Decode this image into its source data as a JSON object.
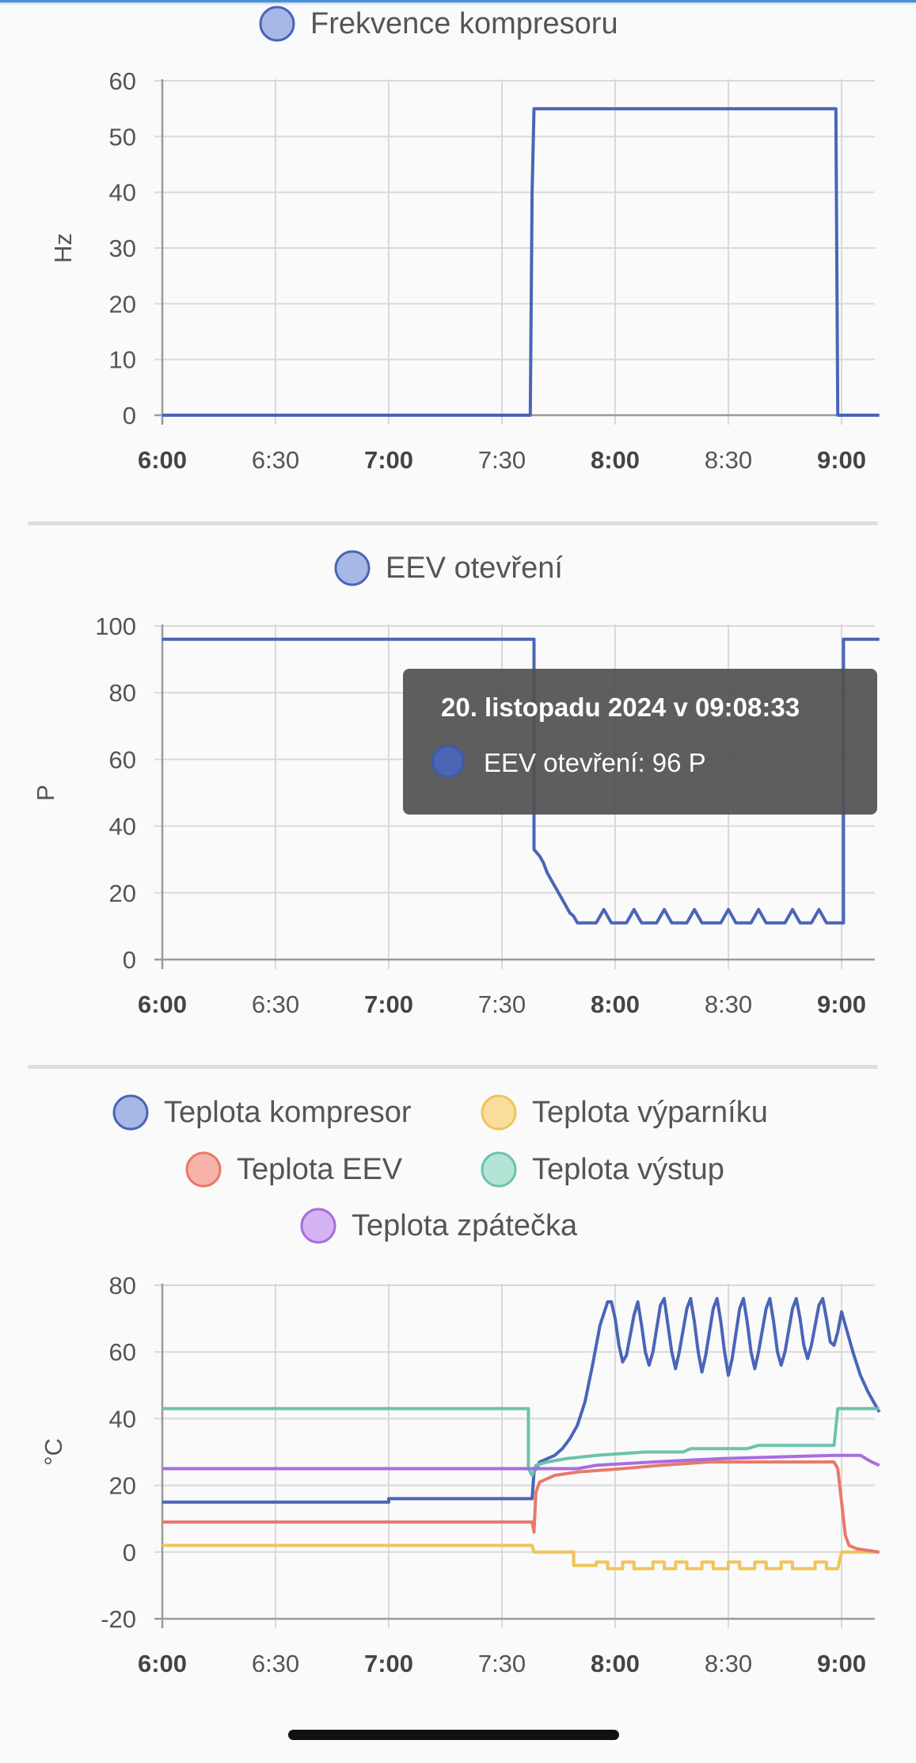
{
  "tooltip": {
    "title": "20. listopadu 2024 v 09:08:33",
    "label": "EEV otevření: 96 P",
    "color": "#4c65b4"
  },
  "x_ticks": [
    {
      "label": "6:00",
      "bold": true
    },
    {
      "label": "6:30",
      "bold": false
    },
    {
      "label": "7:00",
      "bold": true
    },
    {
      "label": "7:30",
      "bold": false
    },
    {
      "label": "8:00",
      "bold": true
    },
    {
      "label": "8:30",
      "bold": false
    },
    {
      "label": "9:00",
      "bold": true
    }
  ],
  "chart_data": [
    {
      "type": "line",
      "ylabel": "Hz",
      "ylim": [
        0,
        60
      ],
      "yticks": [
        0,
        10,
        20,
        30,
        40,
        50,
        60
      ],
      "xlim": [
        "6:00",
        "9:10"
      ],
      "grid": true,
      "legend_position": "top",
      "series": [
        {
          "name": "Frekvence kompresoru",
          "color": "#4a65b8",
          "fill": "#a7b8e6",
          "points": [
            [
              "6:00",
              0
            ],
            [
              "7:37.5",
              0
            ],
            [
              "7:38",
              40
            ],
            [
              "7:38.5",
              55
            ],
            [
              "8:58.5",
              55
            ],
            [
              "8:59",
              0
            ],
            [
              "9:10",
              0
            ]
          ]
        }
      ]
    },
    {
      "type": "line",
      "ylabel": "P",
      "ylim": [
        0,
        100
      ],
      "yticks": [
        0,
        20,
        40,
        60,
        80,
        100
      ],
      "xlim": [
        "6:00",
        "9:10"
      ],
      "grid": true,
      "legend_position": "top",
      "series": [
        {
          "name": "EEV otevření",
          "color": "#4a65b8",
          "fill": "#a7b8e6",
          "points": [
            [
              "6:00",
              96
            ],
            [
              "7:38.5",
              96
            ],
            [
              "7:38.5",
              33
            ],
            [
              "7:40",
              31
            ],
            [
              "7:41",
              29
            ],
            [
              "7:42",
              26
            ],
            [
              "7:43",
              24
            ],
            [
              "7:44",
              22
            ],
            [
              "7:45",
              20
            ],
            [
              "7:46",
              18
            ],
            [
              "7:47",
              16
            ],
            [
              "7:48",
              14
            ],
            [
              "7:49",
              13
            ],
            [
              "7:50",
              11
            ],
            [
              "7:55",
              11
            ],
            [
              "7:56",
              13
            ],
            [
              "7:57",
              15
            ],
            [
              "7:58",
              13
            ],
            [
              "7:59",
              11
            ],
            [
              "8:03",
              11
            ],
            [
              "8:04",
              13
            ],
            [
              "8:05",
              15
            ],
            [
              "8:06",
              13
            ],
            [
              "8:07",
              11
            ],
            [
              "8:11",
              11
            ],
            [
              "8:12",
              13
            ],
            [
              "8:13",
              15
            ],
            [
              "8:14",
              13
            ],
            [
              "8:15",
              11
            ],
            [
              "8:19",
              11
            ],
            [
              "8:20",
              13
            ],
            [
              "8:21",
              15
            ],
            [
              "8:22",
              13
            ],
            [
              "8:23",
              11
            ],
            [
              "8:28",
              11
            ],
            [
              "8:29",
              13
            ],
            [
              "8:30",
              15
            ],
            [
              "8:31",
              13
            ],
            [
              "8:32",
              11
            ],
            [
              "8:36",
              11
            ],
            [
              "8:37",
              13
            ],
            [
              "8:38",
              15
            ],
            [
              "8:39",
              13
            ],
            [
              "8:40",
              11
            ],
            [
              "8:45",
              11
            ],
            [
              "8:46",
              13
            ],
            [
              "8:47",
              15
            ],
            [
              "8:48",
              13
            ],
            [
              "8:49",
              11
            ],
            [
              "8:52",
              11
            ],
            [
              "8:53",
              13
            ],
            [
              "8:54",
              15
            ],
            [
              "8:55",
              13
            ],
            [
              "8:56",
              11
            ],
            [
              "9:00.5",
              11
            ],
            [
              "9:00.5",
              96
            ],
            [
              "9:10",
              96
            ]
          ]
        }
      ]
    },
    {
      "type": "line",
      "ylabel": "°C",
      "ylim": [
        -20,
        80
      ],
      "yticks": [
        -20,
        0,
        20,
        40,
        60,
        80
      ],
      "xlim": [
        "6:00",
        "9:10"
      ],
      "grid": true,
      "legend_position": "top",
      "series": [
        {
          "name": "Teplota kompresor",
          "color": "#4a65b8",
          "fill": "#a7b8e6",
          "points": [
            [
              "6:00",
              15
            ],
            [
              "7:00",
              15
            ],
            [
              "7:00",
              16
            ],
            [
              "7:38",
              16
            ],
            [
              "7:38.5",
              24
            ],
            [
              "7:40",
              27
            ],
            [
              "7:42",
              28
            ],
            [
              "7:44",
              29
            ],
            [
              "7:46",
              31
            ],
            [
              "7:48",
              34
            ],
            [
              "7:50",
              38
            ],
            [
              "7:52",
              45
            ],
            [
              "7:54",
              56
            ],
            [
              "7:56",
              68
            ],
            [
              "7:58",
              75
            ],
            [
              "7:59",
              75
            ],
            [
              "8:00",
              70
            ],
            [
              "8:01",
              62
            ],
            [
              "8:02",
              57
            ],
            [
              "8:03",
              59
            ],
            [
              "8:05",
              71
            ],
            [
              "8:06",
              75
            ],
            [
              "8:07",
              68
            ],
            [
              "8:08",
              60
            ],
            [
              "8:09",
              56
            ],
            [
              "8:10",
              60
            ],
            [
              "8:12",
              74
            ],
            [
              "8:13",
              76
            ],
            [
              "8:14",
              68
            ],
            [
              "8:15",
              60
            ],
            [
              "8:16",
              55
            ],
            [
              "8:17",
              60
            ],
            [
              "8:19",
              73
            ],
            [
              "8:20",
              76
            ],
            [
              "8:21",
              69
            ],
            [
              "8:22",
              60
            ],
            [
              "8:23",
              54
            ],
            [
              "8:24",
              59
            ],
            [
              "8:26",
              73
            ],
            [
              "8:27",
              76
            ],
            [
              "8:28",
              69
            ],
            [
              "8:29",
              60
            ],
            [
              "8:30",
              53
            ],
            [
              "8:31",
              58
            ],
            [
              "8:33",
              73
            ],
            [
              "8:34",
              76
            ],
            [
              "8:35",
              69
            ],
            [
              "8:36",
              60
            ],
            [
              "8:37",
              55
            ],
            [
              "8:38",
              60
            ],
            [
              "8:40",
              73
            ],
            [
              "8:41",
              76
            ],
            [
              "8:42",
              69
            ],
            [
              "8:43",
              60
            ],
            [
              "8:44",
              56
            ],
            [
              "8:45",
              60
            ],
            [
              "8:47",
              73
            ],
            [
              "8:48",
              76
            ],
            [
              "8:49",
              70
            ],
            [
              "8:50",
              62
            ],
            [
              "8:51",
              58
            ],
            [
              "8:52",
              62
            ],
            [
              "8:54",
              74
            ],
            [
              "8:55",
              76
            ],
            [
              "8:56",
              70
            ],
            [
              "8:57",
              63
            ],
            [
              "8:58",
              62
            ],
            [
              "8:59",
              66
            ],
            [
              "9:00",
              72
            ],
            [
              "9:01",
              68
            ],
            [
              "9:03",
              60
            ],
            [
              "9:05",
              53
            ],
            [
              "9:07",
              48
            ],
            [
              "9:09",
              44
            ],
            [
              "9:10",
              42
            ]
          ]
        },
        {
          "name": "Teplota výparníku",
          "color": "#f0c45a",
          "fill": "#f8dd9c",
          "points": [
            [
              "6:00",
              2
            ],
            [
              "7:38",
              2
            ],
            [
              "7:38.5",
              0
            ],
            [
              "7:49",
              0
            ],
            [
              "7:49",
              -4
            ],
            [
              "7:55",
              -4
            ],
            [
              "7:55",
              -3
            ],
            [
              "7:58",
              -3
            ],
            [
              "7:58",
              -5
            ],
            [
              "8:02",
              -5
            ],
            [
              "8:02",
              -3
            ],
            [
              "8:05",
              -3
            ],
            [
              "8:05",
              -5
            ],
            [
              "8:10",
              -5
            ],
            [
              "8:10",
              -3
            ],
            [
              "8:13",
              -3
            ],
            [
              "8:13",
              -5
            ],
            [
              "8:16",
              -5
            ],
            [
              "8:16",
              -3
            ],
            [
              "8:19",
              -3
            ],
            [
              "8:19",
              -5
            ],
            [
              "8:23",
              -5
            ],
            [
              "8:23",
              -3
            ],
            [
              "8:26",
              -3
            ],
            [
              "8:26",
              -5
            ],
            [
              "8:30",
              -5
            ],
            [
              "8:30",
              -3
            ],
            [
              "8:33",
              -3
            ],
            [
              "8:33",
              -5
            ],
            [
              "8:37",
              -5
            ],
            [
              "8:37",
              -3
            ],
            [
              "8:40",
              -3
            ],
            [
              "8:40",
              -5
            ],
            [
              "8:44",
              -5
            ],
            [
              "8:44",
              -3
            ],
            [
              "8:47",
              -3
            ],
            [
              "8:47",
              -5
            ],
            [
              "8:53",
              -5
            ],
            [
              "8:53",
              -3
            ],
            [
              "8:56",
              -3
            ],
            [
              "8:56",
              -5
            ],
            [
              "8:59",
              -5
            ],
            [
              "9:00",
              0
            ],
            [
              "9:10",
              0
            ]
          ]
        },
        {
          "name": "Teplota EEV",
          "color": "#e8796b",
          "fill": "#f7b3a9",
          "points": [
            [
              "6:00",
              9
            ],
            [
              "7:38",
              9
            ],
            [
              "7:38.5",
              6
            ],
            [
              "7:39",
              18
            ],
            [
              "7:40",
              21
            ],
            [
              "7:42",
              22
            ],
            [
              "7:44",
              23
            ],
            [
              "7:50",
              24
            ],
            [
              "8:02",
              25
            ],
            [
              "8:12",
              26
            ],
            [
              "8:25",
              27
            ],
            [
              "8:58",
              27
            ],
            [
              "8:59",
              25
            ],
            [
              "9:00",
              15
            ],
            [
              "9:01",
              5
            ],
            [
              "9:02",
              2
            ],
            [
              "9:04",
              1
            ],
            [
              "9:10",
              0
            ]
          ]
        },
        {
          "name": "Teplota výstup",
          "color": "#6cc3ad",
          "fill": "#b5e4d6",
          "points": [
            [
              "6:00",
              43
            ],
            [
              "7:37",
              43
            ],
            [
              "7:37",
              25
            ],
            [
              "7:38",
              23
            ],
            [
              "7:39",
              26
            ],
            [
              "7:42",
              27
            ],
            [
              "7:47",
              28
            ],
            [
              "7:55",
              29
            ],
            [
              "8:08",
              30
            ],
            [
              "8:18",
              30
            ],
            [
              "8:20",
              31
            ],
            [
              "8:35",
              31
            ],
            [
              "8:38",
              32
            ],
            [
              "8:58",
              32
            ],
            [
              "8:59",
              43
            ],
            [
              "9:10",
              43
            ]
          ]
        },
        {
          "name": "Teplota zpátečka",
          "color": "#a86ce0",
          "fill": "#d4b3f2",
          "points": [
            [
              "6:00",
              25
            ],
            [
              "7:38",
              25
            ],
            [
              "7:42",
              25
            ],
            [
              "7:50",
              25
            ],
            [
              "7:55",
              26
            ],
            [
              "8:10",
              27
            ],
            [
              "8:28",
              28
            ],
            [
              "8:58",
              29
            ],
            [
              "9:05",
              29
            ],
            [
              "9:08",
              27
            ],
            [
              "9:10",
              26
            ]
          ]
        }
      ]
    }
  ]
}
